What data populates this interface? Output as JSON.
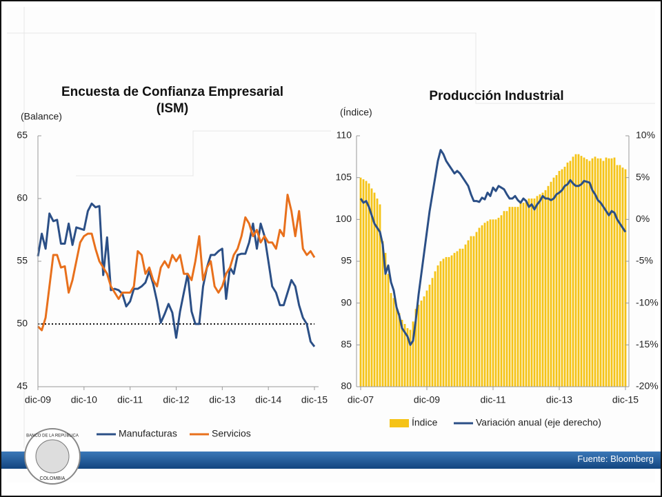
{
  "chart_data": [
    {
      "type": "line",
      "title": "Encuesta de Confianza Empresarial (ISM)",
      "ylabel": "(Balance)",
      "categories": [
        "dic-09",
        null,
        null,
        null,
        null,
        null,
        null,
        null,
        null,
        null,
        null,
        null,
        "dic-10",
        null,
        null,
        null,
        null,
        null,
        null,
        null,
        null,
        null,
        null,
        null,
        "dic-11",
        null,
        null,
        null,
        null,
        null,
        null,
        null,
        null,
        null,
        null,
        null,
        "dic-12",
        null,
        null,
        null,
        null,
        null,
        null,
        null,
        null,
        null,
        null,
        null,
        "dic-13",
        null,
        null,
        null,
        null,
        null,
        null,
        null,
        null,
        null,
        null,
        null,
        "dic-14",
        null,
        null,
        null,
        null,
        null,
        null,
        null,
        null,
        null,
        null,
        null,
        "dic-15"
      ],
      "series": [
        {
          "name": "Manufacturas",
          "color": "#2b4f86",
          "values": [
            55.4,
            57.2,
            56.0,
            58.8,
            58.2,
            58.3,
            56.4,
            56.4,
            58.0,
            56.3,
            57.7,
            57.6,
            57.5,
            59.0,
            59.6,
            59.3,
            59.4,
            53.9,
            56.9,
            52.7,
            52.8,
            52.7,
            52.4,
            51.4,
            51.8,
            52.8,
            52.8,
            53.0,
            53.3,
            54.2,
            53.2,
            51.8,
            50.1,
            50.8,
            51.6,
            50.9,
            48.9,
            51.0,
            52.5,
            54.0,
            51.0,
            50.0,
            50.0,
            53.0,
            54.5,
            55.5,
            55.5,
            55.8,
            56.0,
            52.0,
            54.5,
            54.0,
            55.5,
            55.6,
            55.6,
            56.5,
            58.0,
            56.0,
            58.0,
            57.0,
            55.0,
            53.0,
            52.5,
            51.5,
            51.5,
            52.5,
            53.5,
            53.0,
            51.5,
            50.5,
            50.0,
            48.6,
            48.2
          ]
        },
        {
          "name": "Servicios",
          "color": "#e8701c",
          "values": [
            49.8,
            49.5,
            50.5,
            53.0,
            55.5,
            55.5,
            54.5,
            54.6,
            52.5,
            53.5,
            55.0,
            56.5,
            57.0,
            57.2,
            57.2,
            56.0,
            55.0,
            54.5,
            54.0,
            53.0,
            52.5,
            52.0,
            52.5,
            52.5,
            52.5,
            53.0,
            55.8,
            55.5,
            54.0,
            54.5,
            53.5,
            53.0,
            54.5,
            55.0,
            54.5,
            55.5,
            55.0,
            55.5,
            54.0,
            54.0,
            53.5,
            55.0,
            57.0,
            53.5,
            54.5,
            55.0,
            53.0,
            52.5,
            53.0,
            54.0,
            54.5,
            55.5,
            56.0,
            57.0,
            58.5,
            58.0,
            57.0,
            57.5,
            56.5,
            57.0,
            56.5,
            56.5,
            56.0,
            57.5,
            57.0,
            60.3,
            59.0,
            57.0,
            59.0,
            56.0,
            55.5,
            55.8,
            55.3
          ]
        }
      ],
      "reference_line": 50,
      "ylim": [
        45,
        65
      ],
      "yticks": [
        45,
        50,
        55,
        60,
        65
      ],
      "grid": false,
      "legend": "bottom"
    },
    {
      "type": "bar",
      "title": "Producción Industrial",
      "ylabel": "(Índice)",
      "categories": [
        "dic-07",
        null,
        null,
        null,
        null,
        null,
        null,
        null,
        null,
        null,
        null,
        null,
        null,
        null,
        null,
        null,
        null,
        null,
        null,
        null,
        null,
        null,
        null,
        null,
        "dic-09",
        null,
        null,
        null,
        null,
        null,
        null,
        null,
        null,
        null,
        null,
        null,
        null,
        null,
        null,
        null,
        null,
        null,
        null,
        null,
        null,
        null,
        null,
        null,
        "dic-11",
        null,
        null,
        null,
        null,
        null,
        null,
        null,
        null,
        null,
        null,
        null,
        null,
        null,
        null,
        null,
        null,
        null,
        null,
        null,
        null,
        null,
        null,
        null,
        "dic-13",
        null,
        null,
        null,
        null,
        null,
        null,
        null,
        null,
        null,
        null,
        null,
        null,
        null,
        null,
        null,
        null,
        null,
        null,
        null,
        null,
        null,
        null,
        null,
        "dic-15"
      ],
      "series": [
        {
          "name": "Índice",
          "color": "#f5c316",
          "type": "bar",
          "values": [
            105.0,
            104.8,
            104.6,
            104.3,
            103.7,
            103.2,
            102.5,
            101.8,
            97.4,
            96.0,
            93.5,
            91.2,
            90.6,
            89.5,
            88.8,
            88.0,
            87.5,
            87.0,
            86.8,
            87.8,
            89.3,
            89.8,
            90.3,
            90.8,
            91.5,
            92.2,
            93.0,
            93.8,
            94.5,
            95.0,
            95.3,
            95.5,
            95.5,
            95.7,
            96.0,
            96.2,
            96.5,
            96.5,
            97.0,
            97.5,
            98.0,
            98.0,
            98.5,
            99.0,
            99.3,
            99.6,
            99.8,
            100.0,
            100.0,
            100.0,
            100.2,
            100.5,
            101.0,
            101.0,
            101.5,
            101.5,
            101.5,
            101.5,
            102.0,
            102.0,
            102.3,
            102.5,
            102.5,
            102.5,
            102.8,
            103.0,
            103.2,
            103.5,
            104.0,
            104.5,
            105.0,
            105.3,
            105.8,
            106.0,
            106.3,
            106.8,
            107.0,
            107.5,
            107.8,
            107.8,
            107.6,
            107.4,
            107.2,
            107.0,
            107.3,
            107.5,
            107.3,
            107.3,
            107.0,
            107.4,
            107.3,
            107.3,
            107.4,
            106.5,
            106.5,
            106.2,
            106.0
          ]
        },
        {
          "name": "Variación anual (eje derecho)",
          "color": "#2b4f86",
          "type": "line",
          "axis": "y2",
          "values": [
            2.5,
            2.0,
            2.2,
            1.5,
            0.5,
            -0.5,
            -1.0,
            -1.5,
            -3.0,
            -6.5,
            -5.5,
            -7.5,
            -8.5,
            -10.5,
            -11.5,
            -13.0,
            -13.5,
            -14.0,
            -15.0,
            -14.5,
            -12.0,
            -9.0,
            -6.5,
            -4.0,
            -1.5,
            1.0,
            3.0,
            5.0,
            7.0,
            8.3,
            7.8,
            7.0,
            6.5,
            6.0,
            5.5,
            5.8,
            5.5,
            5.0,
            4.5,
            4.0,
            3.0,
            2.2,
            2.2,
            2.1,
            2.6,
            2.4,
            3.2,
            2.8,
            3.8,
            3.4,
            4.0,
            3.8,
            3.6,
            3.0,
            2.5,
            2.5,
            2.8,
            2.3,
            2.0,
            2.5,
            2.2,
            1.5,
            1.8,
            1.2,
            1.8,
            2.2,
            2.8,
            2.5,
            2.5,
            2.3,
            2.5,
            3.0,
            3.2,
            3.5,
            4.0,
            4.2,
            4.7,
            4.3,
            4.0,
            4.0,
            4.2,
            4.6,
            4.5,
            4.4,
            3.5,
            3.0,
            2.3,
            2.0,
            1.5,
            1.0,
            0.5,
            1.0,
            0.8,
            0.0,
            -0.5,
            -1.0,
            -1.5
          ]
        }
      ],
      "ylim": [
        80,
        110
      ],
      "yticks": [
        80,
        85,
        90,
        95,
        100,
        105,
        110
      ],
      "y2lim": [
        -20,
        10
      ],
      "y2ticks": [
        {
          "value": -20,
          "label": "-20%"
        },
        {
          "value": -15,
          "label": "-15%"
        },
        {
          "value": -10,
          "label": "-10%"
        },
        {
          "value": -5,
          "label": "-5%"
        },
        {
          "value": 0,
          "label": "0%"
        },
        {
          "value": 5,
          "label": "5%"
        },
        {
          "value": 10,
          "label": "10%"
        }
      ],
      "grid": false,
      "legend": "bottom"
    }
  ],
  "footer": {
    "source": "Fuente: Bloomberg"
  },
  "logo": {
    "top": "BANCO DE LA REPÚBLICA",
    "bottom": "COLOMBIA"
  }
}
